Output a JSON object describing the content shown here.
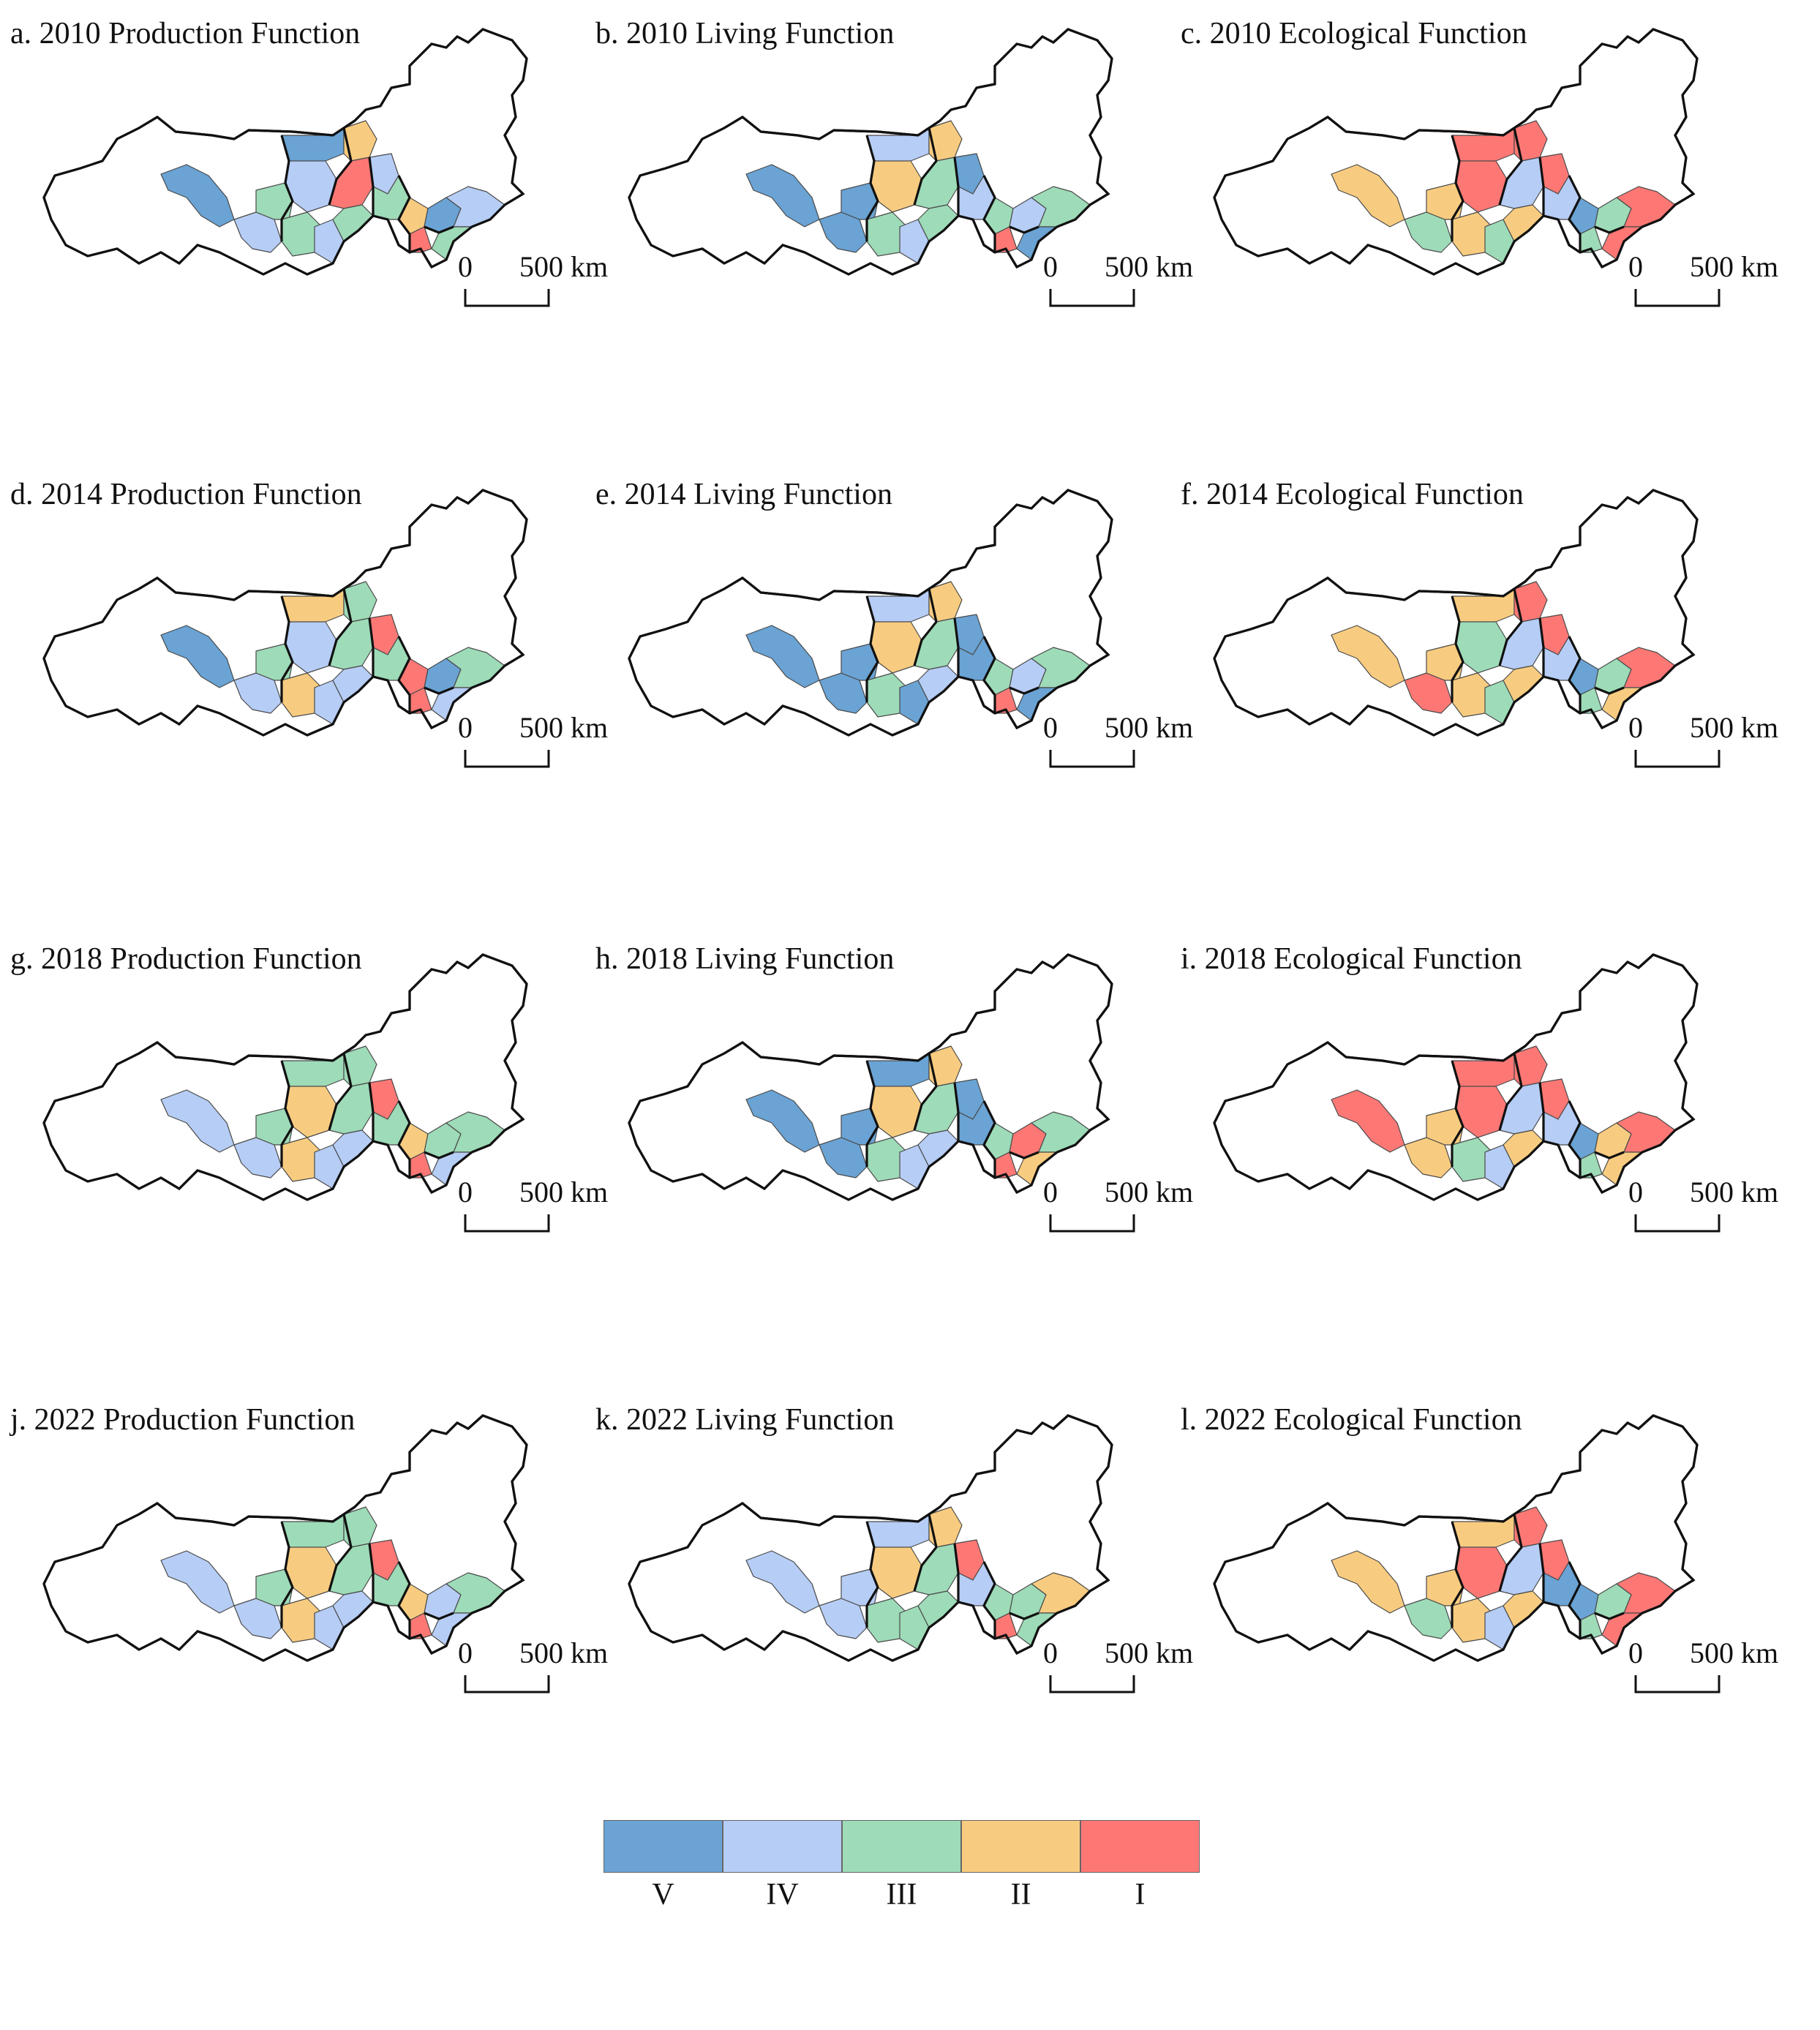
{
  "legend": {
    "classes": [
      {
        "label": "V",
        "color": "#6aa3d4"
      },
      {
        "label": "IV",
        "color": "#b6cdf5"
      },
      {
        "label": "III",
        "color": "#9edbb8"
      },
      {
        "label": "II",
        "color": "#f8cc80"
      },
      {
        "label": "I",
        "color": "#fd7875"
      }
    ]
  },
  "scale": {
    "zero": "0",
    "distance": "500 km"
  },
  "panels": [
    {
      "title": "a. 2010 Production Function",
      "classes": [
        0,
        1,
        0,
        1,
        2,
        2,
        1,
        3,
        4,
        2,
        1,
        2,
        3,
        4,
        0,
        1,
        2
      ]
    },
    {
      "title": "b. 2010 Living Function",
      "classes": [
        0,
        0,
        1,
        3,
        0,
        2,
        1,
        3,
        2,
        2,
        0,
        1,
        2,
        4,
        1,
        2,
        0
      ]
    },
    {
      "title": "c. 2010 Ecological Function",
      "classes": [
        3,
        2,
        4,
        4,
        3,
        3,
        2,
        4,
        1,
        3,
        4,
        1,
        0,
        2,
        2,
        4,
        4
      ]
    },
    {
      "title": "d. 2014 Production Function",
      "classes": [
        0,
        1,
        3,
        1,
        2,
        3,
        1,
        2,
        2,
        1,
        4,
        2,
        4,
        4,
        0,
        2,
        1
      ]
    },
    {
      "title": "e. 2014 Living Function",
      "classes": [
        0,
        0,
        1,
        3,
        0,
        2,
        0,
        3,
        2,
        1,
        0,
        0,
        2,
        4,
        1,
        2,
        0
      ]
    },
    {
      "title": "f. 2014 Ecological Function",
      "classes": [
        3,
        4,
        3,
        2,
        3,
        3,
        2,
        4,
        1,
        3,
        4,
        1,
        0,
        2,
        2,
        4,
        3
      ]
    },
    {
      "title": "g. 2018 Production Function",
      "classes": [
        1,
        1,
        2,
        3,
        2,
        3,
        1,
        2,
        2,
        1,
        4,
        2,
        3,
        4,
        2,
        2,
        1
      ]
    },
    {
      "title": "h. 2018 Living Function",
      "classes": [
        0,
        0,
        0,
        3,
        0,
        2,
        1,
        3,
        2,
        1,
        0,
        0,
        2,
        4,
        4,
        2,
        3
      ]
    },
    {
      "title": "i. 2018 Ecological Function",
      "classes": [
        4,
        3,
        4,
        4,
        3,
        2,
        1,
        4,
        1,
        3,
        4,
        1,
        0,
        2,
        3,
        4,
        3
      ]
    },
    {
      "title": "j. 2022 Production Function",
      "classes": [
        1,
        1,
        2,
        3,
        2,
        3,
        1,
        2,
        2,
        1,
        4,
        2,
        3,
        4,
        1,
        2,
        1
      ]
    },
    {
      "title": "k. 2022 Living Function",
      "classes": [
        1,
        1,
        1,
        3,
        1,
        2,
        2,
        3,
        2,
        2,
        4,
        1,
        2,
        4,
        2,
        3,
        2
      ]
    },
    {
      "title": "l. 2022 Ecological Function",
      "classes": [
        3,
        2,
        3,
        4,
        3,
        3,
        1,
        4,
        1,
        3,
        4,
        0,
        0,
        2,
        2,
        4,
        4
      ]
    }
  ]
}
